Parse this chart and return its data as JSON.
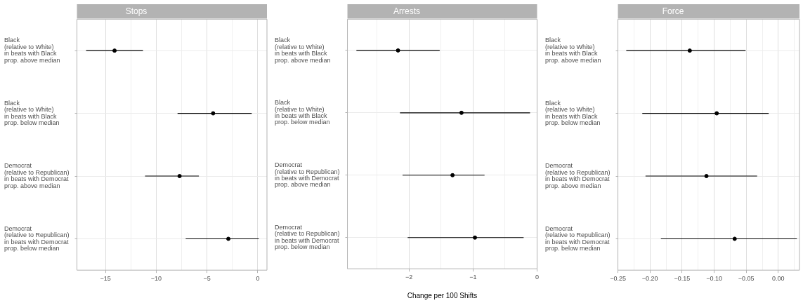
{
  "chart_data": [
    {
      "type": "scatter",
      "orientation": "horizontal",
      "title": "Stops",
      "color": "#000000",
      "marker": "circle",
      "grid": true,
      "categories": [
        "Black\n(relative to White)\nin beats with Black\nprop. above median",
        "Black\n(relative to White)\nin beats with Black\nprop. below median",
        "Democrat\n(relative to Republican)\nin beats with Democrat\nprop. above median",
        "Democrat\n(relative to Republican)\nin beats with Democrat\nprop. below median"
      ],
      "values": [
        -14.1,
        -4.4,
        -7.7,
        -2.9
      ],
      "errors": [
        [
          -16.9,
          -11.3
        ],
        [
          -7.9,
          -0.6
        ],
        [
          -11.1,
          -5.8
        ],
        [
          -7.1,
          0.1
        ]
      ],
      "xlim": [
        -17.8,
        0.9
      ],
      "xticks": [
        {
          "value": -15,
          "label": "−15"
        },
        {
          "value": -12.5,
          "label": null
        },
        {
          "value": -10,
          "label": "−10"
        },
        {
          "value": -7.5,
          "label": null
        },
        {
          "value": -5,
          "label": "−5"
        },
        {
          "value": -2.5,
          "label": null
        },
        0
      ]
    },
    {
      "type": "scatter",
      "orientation": "horizontal",
      "title": "Arrests",
      "xlabel": "Change per 100 Shifts",
      "color": "#000000",
      "marker": "circle",
      "grid": true,
      "categories": [
        "Black\n(relative to White)\nin beats with Black\nprop. above median",
        "Black\n(relative to White)\nin beats with Black\nprop. below median",
        "Democrat\n(relative to Republican)\nin beats with Democrat\nprop. above median",
        "Democrat\n(relative to Republican)\nin beats with Democrat\nprop. below median"
      ],
      "values": [
        -2.17,
        -1.18,
        -1.32,
        -0.97
      ],
      "errors": [
        [
          -2.82,
          -1.52
        ],
        [
          -2.14,
          -0.11
        ],
        [
          -2.1,
          -0.82
        ],
        [
          -2.02,
          -0.21
        ]
      ],
      "xlim": [
        -2.96,
        0
      ],
      "xticks": [
        {
          "value": -2.5,
          "label": null
        },
        {
          "value": -2,
          "label": "−2"
        },
        {
          "value": -1.5,
          "label": null
        },
        {
          "value": -1,
          "label": "−1"
        },
        {
          "value": -0.5,
          "label": null
        },
        0
      ]
    },
    {
      "type": "scatter",
      "orientation": "horizontal",
      "title": "Force",
      "color": "#000000",
      "marker": "circle",
      "grid": true,
      "categories": [
        "Black\n(relative to White)\nin beats with Black\nprop. above median",
        "Black\n(relative to White)\nin beats with Black\nprop. below median",
        "Democrat\n(relative to Republican)\nin beats with Democrat\nprop. above median",
        "Democrat\n(relative to Republican)\nin beats with Democrat\nprop. below median"
      ],
      "values": [
        -0.138,
        -0.096,
        -0.112,
        -0.068
      ],
      "errors": [
        [
          -0.237,
          -0.051
        ],
        [
          -0.212,
          -0.015
        ],
        [
          -0.207,
          -0.033
        ],
        [
          -0.183,
          0.029
        ]
      ],
      "xlim": [
        -0.25,
        0.033
      ],
      "xticks": [
        {
          "value": -0.25,
          "label": "−0.25"
        },
        {
          "value": -0.225,
          "label": null
        },
        {
          "value": -0.2,
          "label": "−0.20"
        },
        {
          "value": -0.175,
          "label": null
        },
        {
          "value": -0.15,
          "label": "−0.15"
        },
        {
          "value": -0.125,
          "label": null
        },
        {
          "value": -0.1,
          "label": "−0.10"
        },
        {
          "value": -0.075,
          "label": null
        },
        {
          "value": -0.05,
          "label": "−0.05"
        },
        {
          "value": -0.025,
          "label": null
        },
        {
          "value": 0,
          "label": "0.00"
        },
        {
          "value": 0.025,
          "label": null
        }
      ]
    }
  ]
}
